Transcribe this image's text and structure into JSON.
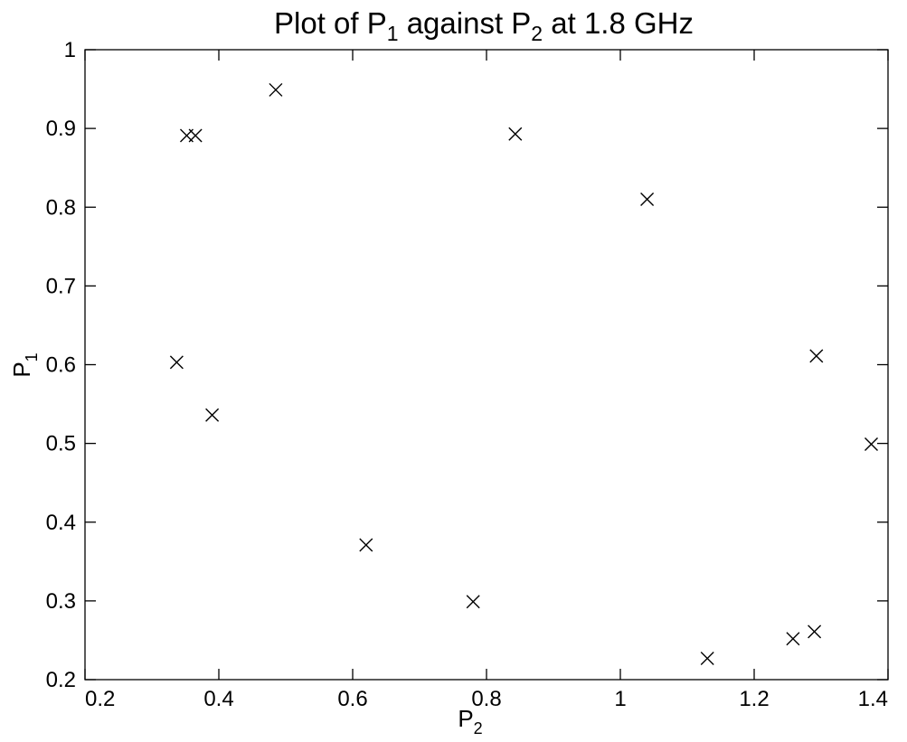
{
  "chart_data": {
    "type": "scatter",
    "title": {
      "prefix": "Plot of P",
      "sub1": "1",
      "middle": " against P",
      "sub2": "2",
      "suffix": " at 1.8 GHz"
    },
    "xlabel": {
      "base": "P",
      "sub": "2"
    },
    "ylabel": {
      "base": "P",
      "sub": "1"
    },
    "xlim": [
      0.2,
      1.4
    ],
    "ylim": [
      0.2,
      1.0
    ],
    "xticks": [
      0.2,
      0.4,
      0.6,
      0.8,
      1.0,
      1.2,
      1.4
    ],
    "xtick_labels": [
      "0.2",
      "0.4",
      "0.6",
      "0.8",
      "1",
      "1.2",
      "1.4"
    ],
    "yticks": [
      0.2,
      0.3,
      0.4,
      0.5,
      0.6,
      0.7,
      0.8,
      0.9,
      1.0
    ],
    "ytick_labels": [
      "0.2",
      "0.3",
      "0.4",
      "0.5",
      "0.6",
      "0.7",
      "0.8",
      "0.9",
      "1"
    ],
    "marker": "x",
    "grid": false,
    "points": [
      {
        "x": 0.337,
        "y": 0.603
      },
      {
        "x": 0.352,
        "y": 0.891
      },
      {
        "x": 0.365,
        "y": 0.891
      },
      {
        "x": 0.39,
        "y": 0.536
      },
      {
        "x": 0.485,
        "y": 0.949
      },
      {
        "x": 0.62,
        "y": 0.371
      },
      {
        "x": 0.78,
        "y": 0.299
      },
      {
        "x": 0.843,
        "y": 0.893
      },
      {
        "x": 1.04,
        "y": 0.81
      },
      {
        "x": 1.13,
        "y": 0.227
      },
      {
        "x": 1.258,
        "y": 0.252
      },
      {
        "x": 1.29,
        "y": 0.261
      },
      {
        "x": 1.293,
        "y": 0.611
      },
      {
        "x": 1.375,
        "y": 0.499
      }
    ]
  }
}
